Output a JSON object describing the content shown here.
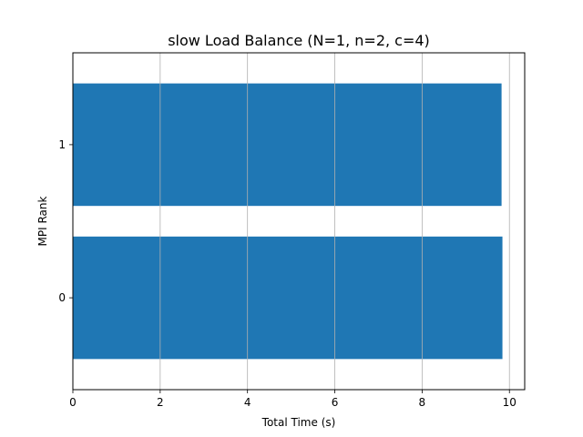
{
  "chart_data": {
    "type": "bar",
    "orientation": "horizontal",
    "title": "slow Load Balance (N=1, n=2, c=4)",
    "xlabel": "Total Time (s)",
    "ylabel": "MPI Rank",
    "categories": [
      "0",
      "1"
    ],
    "values": [
      9.84,
      9.82
    ],
    "xlim": [
      0,
      10.35
    ],
    "xticks": [
      "0",
      "2",
      "4",
      "6",
      "8",
      "10"
    ],
    "grid": "x",
    "bar_color": "#1f77b4"
  }
}
